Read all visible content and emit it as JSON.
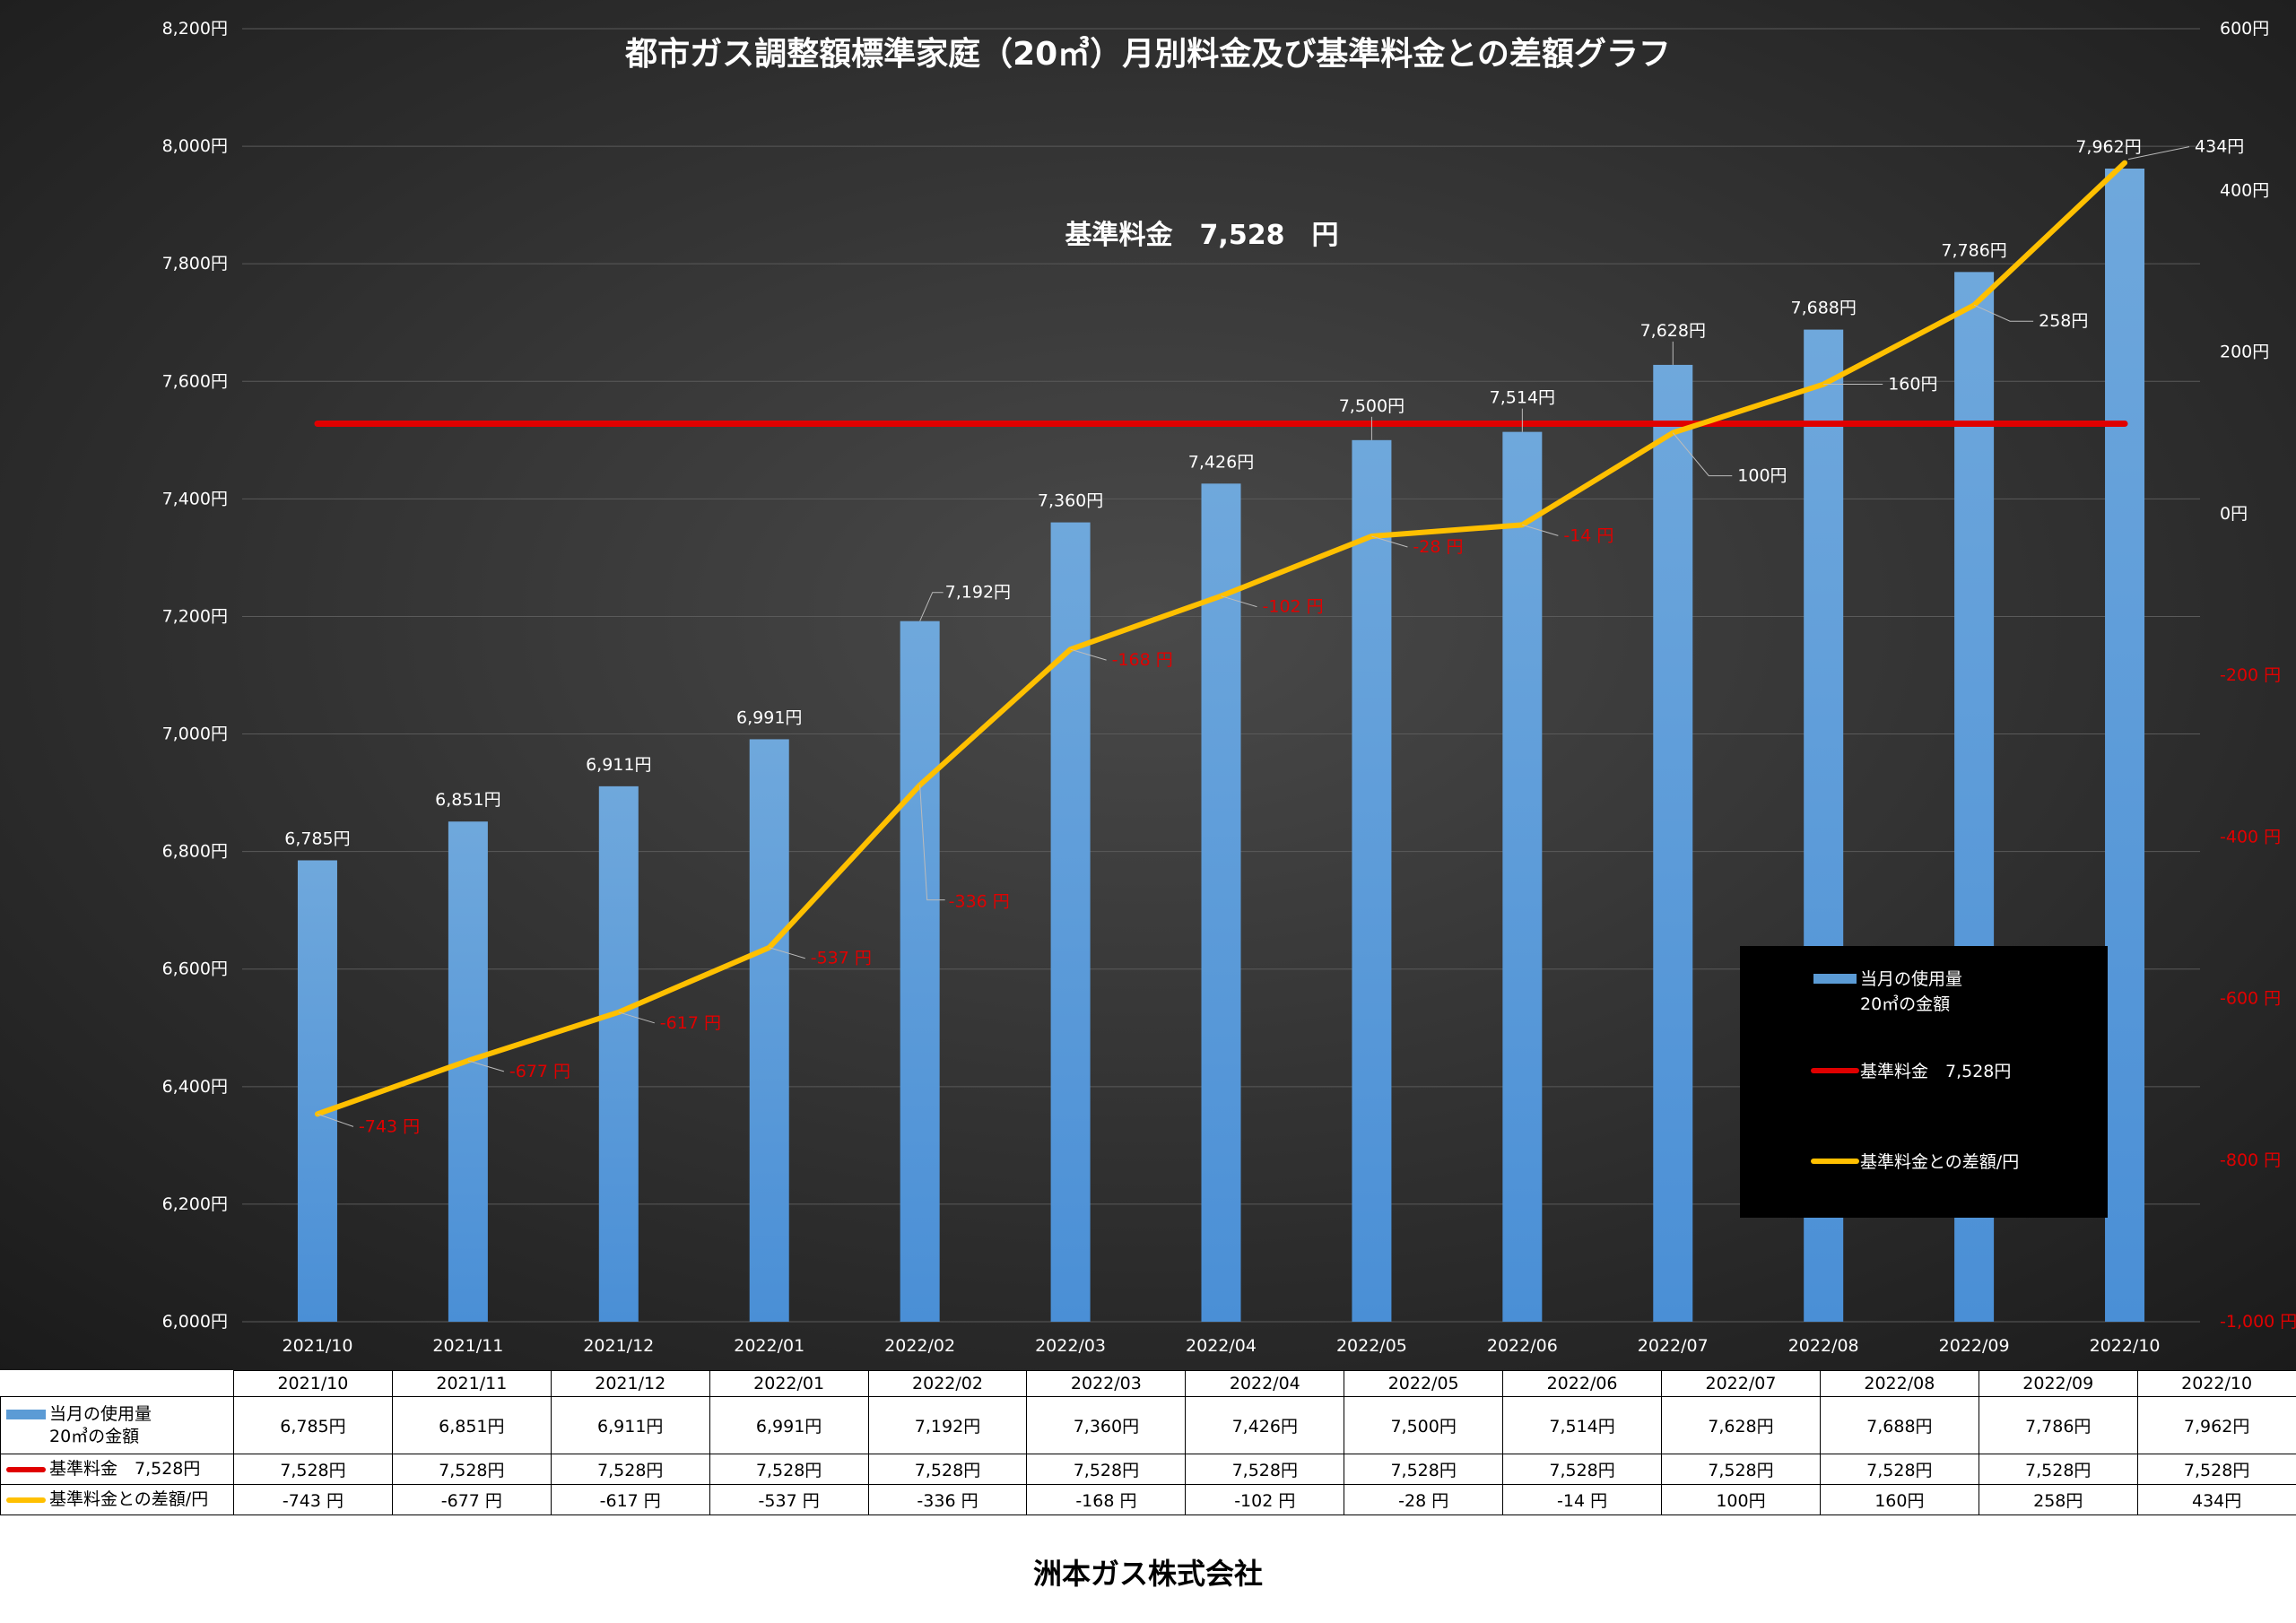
{
  "chart_data": {
    "type": "bar",
    "title": "都市ガス調整額標準家庭（20㎥）月別料金及び基準料金との差額グラフ",
    "subtitle": "基準料金　7,528　円",
    "categories": [
      "2021/10",
      "2021/11",
      "2021/12",
      "2022/01",
      "2022/02",
      "2022/03",
      "2022/04",
      "2022/05",
      "2022/06",
      "2022/07",
      "2022/08",
      "2022/09",
      "2022/10"
    ],
    "series": [
      {
        "name": "当月の使用量\n20㎥の金額",
        "type": "bar",
        "axis": "left",
        "color": "#5b9bd5",
        "values": [
          6785,
          6851,
          6911,
          6991,
          7192,
          7360,
          7426,
          7500,
          7514,
          7628,
          7688,
          7786,
          7962
        ],
        "labels": [
          "6,785円",
          "6,851円",
          "6,911円",
          "6,991円",
          "7,192円",
          "7,360円",
          "7,426円",
          "7,500円",
          "7,514円",
          "7,628円",
          "7,688円",
          "7,786円",
          "7,962円"
        ]
      },
      {
        "name": "基準料金　7,528円",
        "type": "line",
        "axis": "left",
        "color": "#e00000",
        "values": [
          7528,
          7528,
          7528,
          7528,
          7528,
          7528,
          7528,
          7528,
          7528,
          7528,
          7528,
          7528,
          7528
        ]
      },
      {
        "name": "基準料金との差額/円",
        "type": "line",
        "axis": "right",
        "color": "#ffc000",
        "values": [
          -743,
          -677,
          -617,
          -537,
          -336,
          -168,
          -102,
          -28,
          -14,
          100,
          160,
          258,
          434
        ],
        "labels": [
          "-743 円",
          "-677 円",
          "-617 円",
          "-537 円",
          "-336 円",
          "-168 円",
          "-102 円",
          "-28 円",
          "-14 円",
          "100円",
          "160円",
          "258円",
          "434円"
        ]
      }
    ],
    "left_axis": {
      "ylim": [
        6000,
        8200
      ],
      "ticks": [
        6000,
        6200,
        6400,
        6600,
        6800,
        7000,
        7200,
        7400,
        7600,
        7800,
        8000,
        8200
      ],
      "tick_labels": [
        "6,000円",
        "6,200円",
        "6,400円",
        "6,600円",
        "6,800円",
        "7,000円",
        "7,200円",
        "7,400円",
        "7,600円",
        "7,800円",
        "8,000円",
        "8,200円"
      ]
    },
    "right_axis": {
      "ylim": [
        -1000,
        600
      ],
      "ticks": [
        -1000,
        -800,
        -600,
        -400,
        -200,
        0,
        200,
        400,
        600
      ],
      "tick_labels": [
        "-1,000 円",
        "-800 円",
        "-600 円",
        "-400 円",
        "-200 円",
        "0円",
        "200円",
        "400円",
        "600円"
      ]
    },
    "grid": true,
    "legend": "bottom-right"
  },
  "table": {
    "rows": [
      {
        "label": "当月の使用量\n20㎥の金額",
        "values": [
          "6,785円",
          "6,851円",
          "6,911円",
          "6,991円",
          "7,192円",
          "7,360円",
          "7,426円",
          "7,500円",
          "7,514円",
          "7,628円",
          "7,688円",
          "7,786円",
          "7,962円"
        ]
      },
      {
        "label": "基準料金　7,528円",
        "values": [
          "7,528円",
          "7,528円",
          "7,528円",
          "7,528円",
          "7,528円",
          "7,528円",
          "7,528円",
          "7,528円",
          "7,528円",
          "7,528円",
          "7,528円",
          "7,528円",
          "7,528円"
        ]
      },
      {
        "label": "基準料金との差額/円",
        "values": [
          "-743 円",
          "-677 円",
          "-617 円",
          "-537 円",
          "-336 円",
          "-168 円",
          "-102 円",
          "-28 円",
          "-14 円",
          "100円",
          "160円",
          "258円",
          "434円"
        ]
      }
    ]
  },
  "footer": "洲本ガス株式会社",
  "colors": {
    "bar": "#5b9bd5",
    "base_line": "#e00000",
    "diff_line": "#ffc000",
    "background": "#262626",
    "negative_label": "#e00000"
  }
}
